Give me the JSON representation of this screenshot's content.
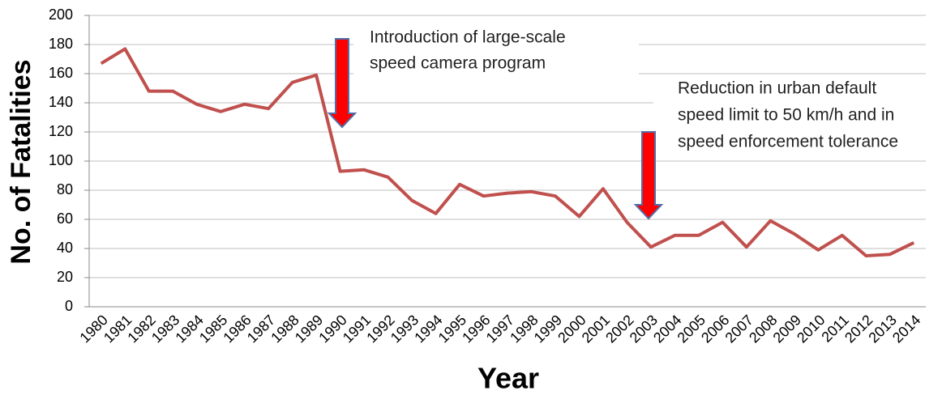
{
  "chart_data": {
    "type": "line",
    "y_label": "No. of Fatalities",
    "x_label": "Year",
    "categories": [
      1980,
      1981,
      1982,
      1983,
      1984,
      1985,
      1986,
      1987,
      1988,
      1989,
      1990,
      1991,
      1992,
      1993,
      1994,
      1995,
      1996,
      1997,
      1998,
      1999,
      2000,
      2001,
      2002,
      2003,
      2004,
      2005,
      2006,
      2007,
      2008,
      2009,
      2010,
      2011,
      2012,
      2013,
      2014
    ],
    "values": [
      167,
      177,
      148,
      148,
      139,
      134,
      139,
      136,
      154,
      159,
      93,
      94,
      89,
      73,
      64,
      84,
      76,
      78,
      79,
      76,
      62,
      81,
      58,
      41,
      49,
      49,
      58,
      41,
      59,
      50,
      39,
      49,
      35,
      36,
      44
    ],
    "color": "#c0504d",
    "ylim": [
      0,
      200
    ],
    "yticks": [
      0,
      20,
      40,
      60,
      80,
      100,
      120,
      140,
      160,
      180,
      200
    ],
    "grid": true,
    "annotations": [
      {
        "lines": [
          "Introduction of large-scale",
          "speed camera program"
        ]
      },
      {
        "lines": [
          "Reduction in urban default",
          "speed limit to 50 km/h and in",
          "speed enforcement tolerance"
        ]
      }
    ]
  }
}
